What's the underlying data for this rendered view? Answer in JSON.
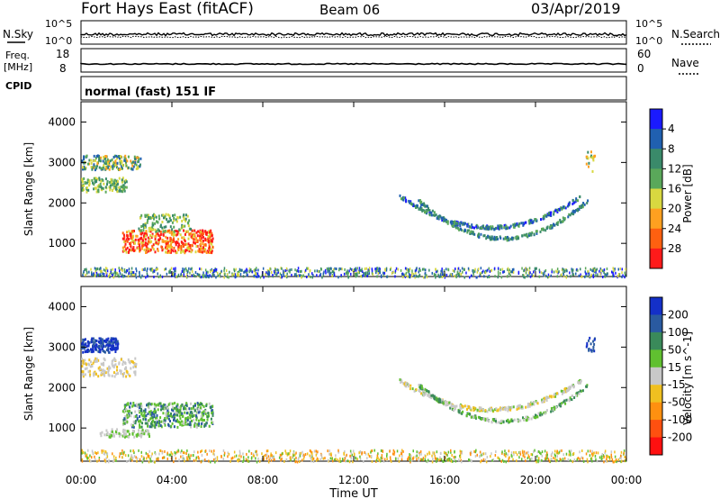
{
  "header": {
    "title": "Fort Hays East (fitACF)",
    "beam": "Beam 06",
    "date": "03/Apr/2019"
  },
  "noise_panel": {
    "left_label": "N.Sky",
    "right_label": "N.Search",
    "left_ticks": [
      "10^5",
      "10^0"
    ],
    "right_ticks": [
      "10^5",
      "10^0"
    ]
  },
  "freq_panel": {
    "left_label_line1": "Freq.",
    "left_label_line2": "[MHz]",
    "right_label": "Nave",
    "left_ticks": [
      "18",
      "8"
    ],
    "right_ticks": [
      "60",
      "0"
    ]
  },
  "cpid": {
    "label": "CPID",
    "text": "normal (fast) 151 IF"
  },
  "chart_data": [
    {
      "type": "heatmap",
      "title": "Power",
      "ylabel": "Slant Range [km]",
      "xlabel": "Time UT",
      "x_ticks": [
        "00:00",
        "04:00",
        "08:00",
        "12:00",
        "16:00",
        "20:00",
        "00:00"
      ],
      "y_ticks": [
        1000,
        2000,
        3000,
        4000
      ],
      "ylim": [
        180,
        4500
      ],
      "xlim_hours": [
        0,
        24
      ],
      "colorbar_label": "Power [dB]",
      "colorbar_ticks": [
        "4",
        "8",
        "12",
        "16",
        "20",
        "24",
        "28"
      ],
      "colorbar_colors": [
        "#1a1aff",
        "#2060b0",
        "#3a8a6a",
        "#5aa85a",
        "#d8d840",
        "#ffa020",
        "#ff6010",
        "#ff1a1a"
      ]
    },
    {
      "type": "heatmap",
      "title": "Velocity",
      "ylabel": "Slant Range [km]",
      "xlabel": "Time UT",
      "x_ticks": [
        "00:00",
        "04:00",
        "08:00",
        "12:00",
        "16:00",
        "20:00",
        "00:00"
      ],
      "y_ticks": [
        1000,
        2000,
        3000,
        4000
      ],
      "ylim": [
        180,
        4500
      ],
      "xlim_hours": [
        0,
        24
      ],
      "colorbar_label": "Velocity [m s^-1]",
      "colorbar_ticks": [
        "200",
        "100",
        "50",
        "15",
        "-15",
        "-50",
        "-100",
        "-200"
      ],
      "colorbar_colors": [
        "#1430c8",
        "#2a5aa0",
        "#3a8a5a",
        "#60c030",
        "#c8c8c8",
        "#f0c020",
        "#ff9010",
        "#ff5010",
        "#ff1010"
      ]
    }
  ]
}
